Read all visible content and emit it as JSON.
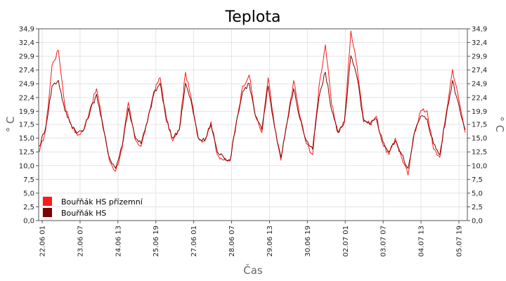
{
  "chart_data": {
    "type": "line",
    "title": "Teplota",
    "xlabel": "Čas",
    "ylabel": "° C",
    "ylim": [
      0.0,
      34.9
    ],
    "y_ticks": [
      "0,0",
      "2,5",
      "5,0",
      "7,5",
      "10,0",
      "12,5",
      "15,0",
      "17,5",
      "19,9",
      "22,4",
      "24,9",
      "27,4",
      "29,9",
      "32,4",
      "34,9"
    ],
    "x_ticks": [
      "22.06 01",
      "23.06 07",
      "24.06 13",
      "25.06 19",
      "27.06 01",
      "28.06 07",
      "29.06 13",
      "30.06 19",
      "02.07 01",
      "03.07 07",
      "04.07 13",
      "05.07 19"
    ],
    "grid": true,
    "legend_position": "bottom-left",
    "series": [
      {
        "name": "Bouřňák HS přízemní",
        "color": "#ff1a1a",
        "values": [
          12.5,
          16.5,
          28.3,
          31.0,
          21.0,
          17.5,
          15.5,
          16.5,
          20.5,
          24.0,
          17.5,
          11.0,
          9.0,
          13.0,
          21.5,
          15.0,
          13.5,
          18.0,
          23.5,
          26.0,
          18.5,
          14.5,
          16.5,
          27.0,
          21.5,
          15.0,
          14.5,
          18.0,
          12.0,
          11.0,
          10.8,
          18.0,
          24.5,
          26.5,
          19.0,
          16.0,
          26.0,
          17.0,
          11.0,
          18.0,
          25.5,
          19.0,
          14.0,
          12.0,
          24.5,
          32.0,
          21.0,
          16.0,
          18.0,
          34.5,
          28.0,
          18.5,
          17.5,
          19.0,
          14.0,
          12.0,
          15.0,
          11.5,
          8.3,
          16.0,
          20.0,
          20.0,
          13.0,
          11.5,
          19.5,
          27.5,
          22.0,
          16.0
        ]
      },
      {
        "name": "Bouřňák HS",
        "color": "#800000",
        "values": [
          13.5,
          17.0,
          24.5,
          25.5,
          20.0,
          17.5,
          16.0,
          16.5,
          20.0,
          23.0,
          17.0,
          11.5,
          9.5,
          13.5,
          20.5,
          15.5,
          14.0,
          18.0,
          23.0,
          25.0,
          18.0,
          15.0,
          16.5,
          25.0,
          21.0,
          15.0,
          14.5,
          17.5,
          12.5,
          11.5,
          11.0,
          18.0,
          23.5,
          25.0,
          19.0,
          16.5,
          24.5,
          17.0,
          11.5,
          18.0,
          24.0,
          18.5,
          14.5,
          13.0,
          22.5,
          27.0,
          20.0,
          16.0,
          18.0,
          30.0,
          26.0,
          18.0,
          17.5,
          18.5,
          14.5,
          12.5,
          14.5,
          12.0,
          9.5,
          16.0,
          19.0,
          18.5,
          14.0,
          12.0,
          19.0,
          25.5,
          21.0,
          16.5
        ]
      }
    ]
  }
}
